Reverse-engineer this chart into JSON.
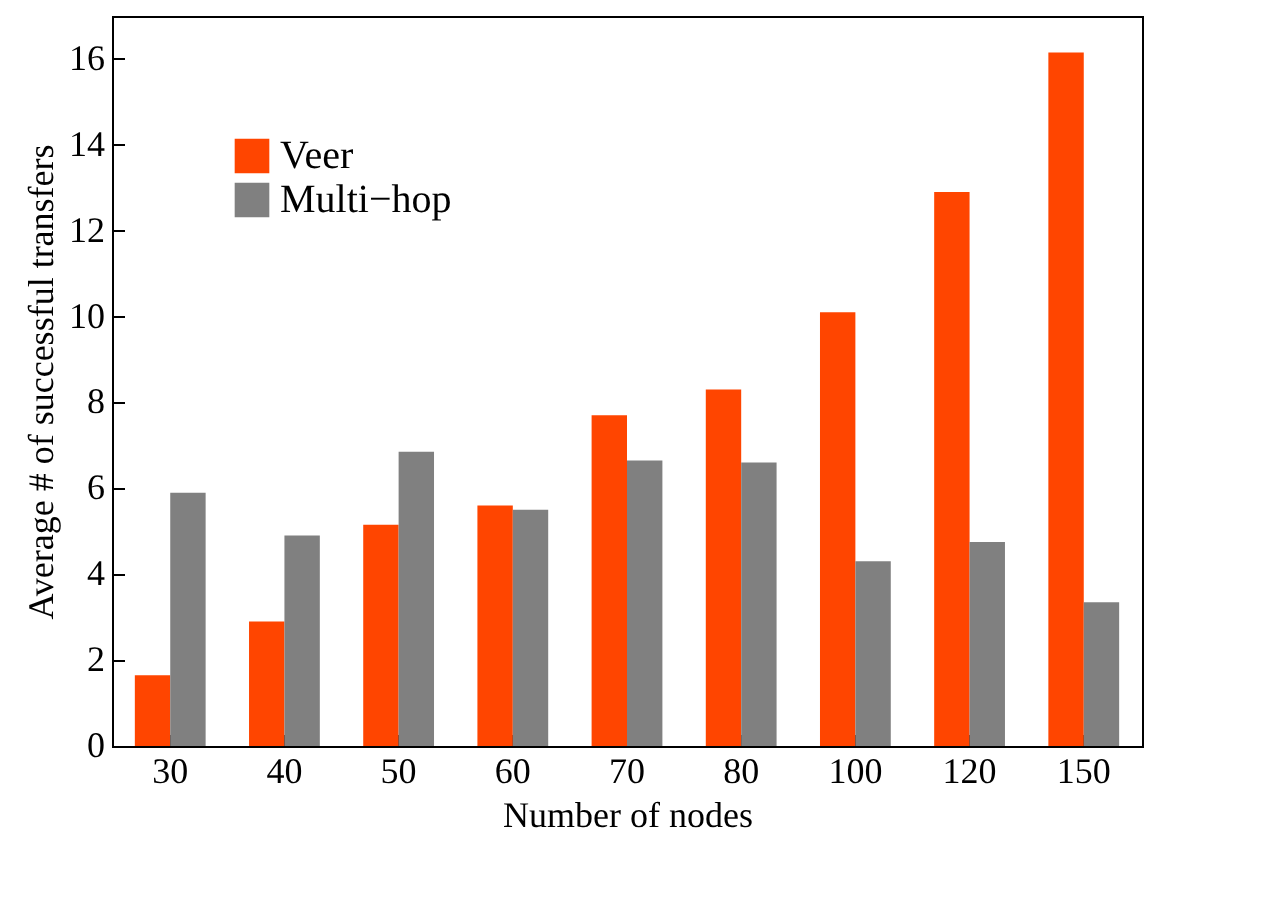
{
  "chart_data": {
    "type": "bar",
    "xlabel": "Number of nodes",
    "ylabel": "Average # of successful transfers",
    "categories": [
      "30",
      "40",
      "50",
      "60",
      "70",
      "80",
      "100",
      "120",
      "150"
    ],
    "series": [
      {
        "name": "Veer",
        "color": "#ff4500",
        "values": [
          1.65,
          2.9,
          5.15,
          5.6,
          7.7,
          8.3,
          10.1,
          12.9,
          16.15
        ]
      },
      {
        "name": "Multi−hop",
        "color": "#808080",
        "values": [
          5.9,
          4.9,
          6.85,
          5.5,
          6.65,
          6.6,
          4.3,
          4.75,
          3.35
        ]
      }
    ],
    "ylim": [
      0,
      17
    ],
    "yticks": [
      0,
      2,
      4,
      6,
      8,
      10,
      12,
      14,
      16
    ],
    "grid": false,
    "legend": "top left"
  }
}
